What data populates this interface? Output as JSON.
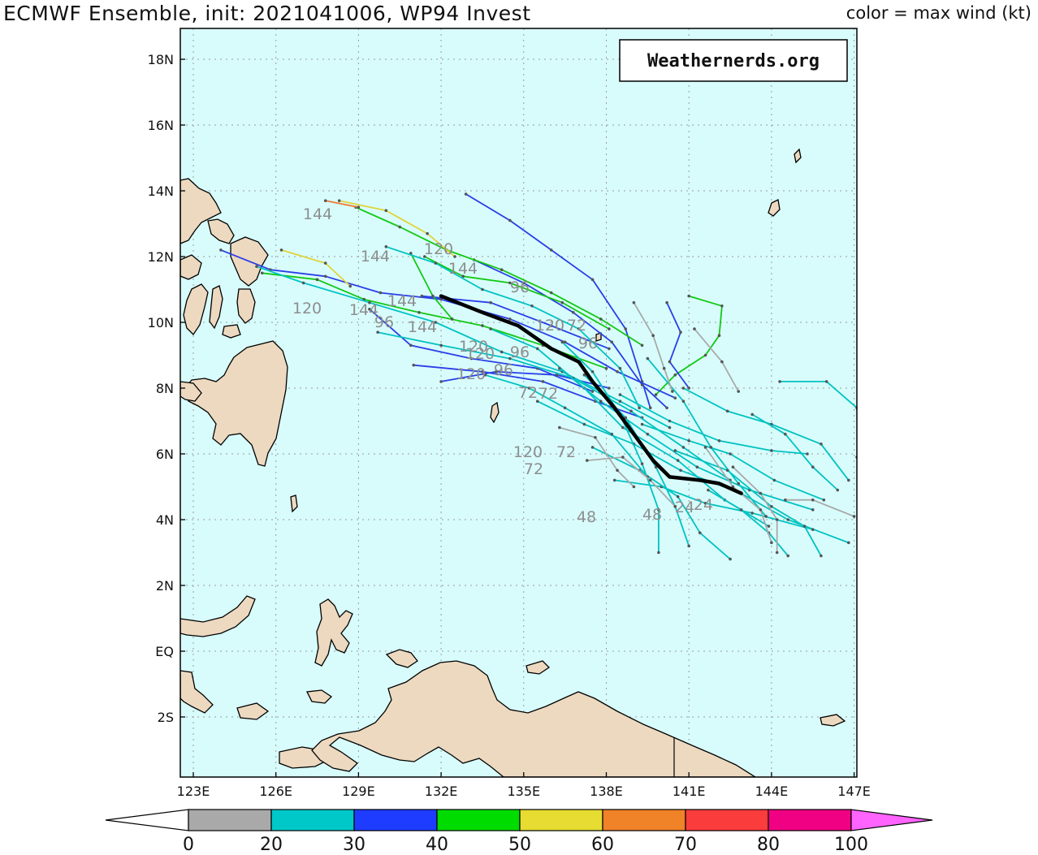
{
  "title": "ECMWF Ensemble, init: 2021041006, WP94 Invest",
  "legend_title": "color = max wind (kt)",
  "watermark": "Weathernerds.org",
  "colors": {
    "ocean": "#d8fcfc",
    "land": "#ecd9c0",
    "grid": "#9a9a9a",
    "mean_track": "#000000"
  },
  "axes": {
    "lon_labels": [
      "123E",
      "126E",
      "129E",
      "132E",
      "135E",
      "138E",
      "141E",
      "144E",
      "147E"
    ],
    "lat_labels": [
      "18N",
      "16N",
      "14N",
      "12N",
      "10N",
      "8N",
      "6N",
      "4N",
      "2N",
      "EQ",
      "2S"
    ]
  },
  "colorbar": {
    "labels": [
      "0",
      "20",
      "30",
      "40",
      "50",
      "60",
      "70",
      "80",
      "100"
    ],
    "colors": [
      "#a9a9a9",
      "#00c8c8",
      "#1e3cff",
      "#00dc00",
      "#e6dc32",
      "#f08228",
      "#fa3c3c",
      "#f00082",
      "#ff64ff"
    ]
  },
  "forecast_hour_labels": [
    {
      "text": "144"
    },
    {
      "text": "120"
    },
    {
      "text": "144"
    },
    {
      "text": "144"
    },
    {
      "text": "120"
    },
    {
      "text": "144"
    },
    {
      "text": "96"
    },
    {
      "text": "144"
    },
    {
      "text": "96"
    },
    {
      "text": "144"
    },
    {
      "text": "120"
    },
    {
      "text": "120"
    },
    {
      "text": "72"
    },
    {
      "text": "96"
    },
    {
      "text": "120"
    },
    {
      "text": "96"
    },
    {
      "text": "72"
    },
    {
      "text": "72"
    },
    {
      "text": "120"
    },
    {
      "text": "72"
    },
    {
      "text": "72"
    },
    {
      "text": "48"
    },
    {
      "text": "48"
    },
    {
      "text": "24"
    },
    {
      "text": "24"
    },
    {
      "text": "120"
    },
    {
      "text": "96"
    }
  ],
  "tracks": [
    {
      "wind": "green",
      "points": [
        [
          141,
          10.8
        ],
        [
          142.2,
          10.5
        ],
        [
          142.1,
          9.6
        ],
        [
          141.6,
          9.0
        ],
        [
          140.5,
          8.4
        ],
        [
          139.8,
          7.8
        ]
      ]
    },
    {
      "wind": "blue",
      "points": [
        [
          132.9,
          13.9
        ],
        [
          134.5,
          13.1
        ],
        [
          136,
          12.2
        ],
        [
          137.5,
          11.3
        ],
        [
          138.7,
          9.8
        ],
        [
          139.3,
          8.2
        ],
        [
          139.6,
          7.4
        ]
      ]
    },
    {
      "wind": "blue",
      "points": [
        [
          133.2,
          11.9
        ],
        [
          135,
          11.2
        ],
        [
          136.8,
          10.3
        ],
        [
          138.2,
          9.4
        ],
        [
          139.3,
          8.1
        ],
        [
          140.2,
          7.4
        ]
      ]
    },
    {
      "wind": "blue",
      "points": [
        [
          124,
          12.2
        ],
        [
          125.8,
          11.6
        ],
        [
          127.8,
          11.4
        ],
        [
          129.8,
          10.9
        ],
        [
          132,
          10.7
        ],
        [
          134.5,
          10.1
        ],
        [
          136.5,
          9.4
        ],
        [
          138.4,
          8.5
        ],
        [
          140.5,
          7.7
        ]
      ]
    },
    {
      "wind": "blue",
      "points": [
        [
          131,
          8.7
        ],
        [
          133.5,
          8.5
        ],
        [
          135.7,
          8.2
        ],
        [
          137.6,
          7.6
        ],
        [
          139.3,
          7.1
        ]
      ]
    },
    {
      "wind": "blue",
      "points": [
        [
          129.4,
          10.4
        ],
        [
          130.9,
          9.3
        ],
        [
          133.1,
          8.9
        ],
        [
          135.5,
          8.6
        ],
        [
          137.5,
          7.9
        ]
      ]
    },
    {
      "wind": "blue",
      "points": [
        [
          132,
          8.2
        ],
        [
          134,
          8.5
        ],
        [
          136.2,
          8.4
        ],
        [
          138.1,
          8.0
        ]
      ]
    },
    {
      "wind": "blue",
      "points": [
        [
          140.2,
          10.6
        ],
        [
          140.7,
          9.7
        ],
        [
          140.3,
          8.8
        ],
        [
          141.0,
          8.0
        ]
      ]
    },
    {
      "wind": "blue",
      "points": [
        [
          131.3,
          10.8
        ],
        [
          133.8,
          10.6
        ],
        [
          136,
          9.9
        ],
        [
          138.1,
          9.2
        ]
      ]
    },
    {
      "wind": "green",
      "points": [
        [
          128.9,
          13.5
        ],
        [
          130.5,
          12.9
        ],
        [
          132.2,
          12.2
        ],
        [
          134.2,
          11.6
        ],
        [
          136,
          10.9
        ],
        [
          137.8,
          10.1
        ],
        [
          139.3,
          9.3
        ]
      ]
    },
    {
      "wind": "green",
      "points": [
        [
          125.5,
          11.5
        ],
        [
          127.5,
          11.3
        ],
        [
          129.2,
          10.7
        ],
        [
          131.2,
          10.3
        ],
        [
          133.5,
          9.9
        ],
        [
          135.7,
          9.3
        ],
        [
          138,
          8.6
        ]
      ]
    },
    {
      "wind": "green",
      "points": [
        [
          131.4,
          12.0
        ],
        [
          132.8,
          11.4
        ],
        [
          134.5,
          11.2
        ],
        [
          136.4,
          10.6
        ],
        [
          138.1,
          9.8
        ]
      ]
    },
    {
      "wind": "green",
      "points": [
        [
          130.9,
          12.1
        ],
        [
          131.7,
          10.8
        ],
        [
          132.4,
          10.1
        ]
      ]
    },
    {
      "wind": "yellow",
      "points": [
        [
          128.3,
          13.7
        ],
        [
          130,
          13.4
        ],
        [
          131.5,
          12.7
        ],
        [
          132.5,
          12.0
        ]
      ]
    },
    {
      "wind": "yellow",
      "points": [
        [
          126.2,
          12.2
        ],
        [
          127.8,
          11.8
        ],
        [
          128.7,
          11.1
        ]
      ]
    },
    {
      "wind": "orange",
      "points": [
        [
          127.8,
          13.7
        ],
        [
          129,
          13.5
        ]
      ]
    },
    {
      "wind": "cyan",
      "points": [
        [
          130,
          12.3
        ],
        [
          131.8,
          11.8
        ],
        [
          133.5,
          11.0
        ],
        [
          135.3,
          10.5
        ],
        [
          137,
          9.8
        ],
        [
          138.5,
          8.6
        ],
        [
          139.2,
          7.4
        ]
      ]
    },
    {
      "wind": "cyan",
      "points": [
        [
          125.3,
          11.7
        ],
        [
          127,
          11.2
        ],
        [
          129.4,
          10.6
        ],
        [
          131.8,
          10.0
        ],
        [
          134.2,
          9.1
        ],
        [
          136.4,
          8.5
        ],
        [
          138.5,
          7.6
        ],
        [
          140.3,
          6.8
        ]
      ]
    },
    {
      "wind": "cyan",
      "points": [
        [
          129.7,
          9.7
        ],
        [
          132,
          9.3
        ],
        [
          134.5,
          8.9
        ],
        [
          136.8,
          8.3
        ],
        [
          138.9,
          7.3
        ],
        [
          140.8,
          6.2
        ],
        [
          142.5,
          5.2
        ]
      ]
    },
    {
      "wind": "cyan",
      "points": [
        [
          133.8,
          9.8
        ],
        [
          135.5,
          9.2
        ],
        [
          137.2,
          8.0
        ],
        [
          138.6,
          6.8
        ],
        [
          140.6,
          5.8
        ],
        [
          142.3,
          4.6
        ],
        [
          143.9,
          3.8
        ]
      ]
    },
    {
      "wind": "cyan",
      "points": [
        [
          136.3,
          8.6
        ],
        [
          137.8,
          7.6
        ],
        [
          139.5,
          6.6
        ],
        [
          141.3,
          5.6
        ],
        [
          143.2,
          4.9
        ],
        [
          145.5,
          4.3
        ]
      ]
    },
    {
      "wind": "cyan",
      "points": [
        [
          137.2,
          8.4
        ],
        [
          138.7,
          7.1
        ],
        [
          139.8,
          5.6
        ],
        [
          140.5,
          4.4
        ],
        [
          141,
          3.2
        ]
      ]
    },
    {
      "wind": "cyan",
      "points": [
        [
          135.5,
          7.6
        ],
        [
          137.2,
          6.9
        ],
        [
          139,
          6.3
        ],
        [
          140.7,
          5.5
        ],
        [
          142.9,
          4.8
        ],
        [
          144.6,
          4.0
        ],
        [
          146.8,
          3.3
        ]
      ]
    },
    {
      "wind": "cyan",
      "points": [
        [
          138.5,
          7.8
        ],
        [
          140.3,
          7.0
        ],
        [
          142.1,
          6.4
        ],
        [
          144,
          6.1
        ],
        [
          145.3,
          6.0
        ]
      ]
    },
    {
      "wind": "cyan",
      "points": [
        [
          140.8,
          8.0
        ],
        [
          142.4,
          7.3
        ],
        [
          144,
          6.9
        ],
        [
          145.8,
          6.3
        ],
        [
          146.8,
          5.2
        ]
      ]
    },
    {
      "wind": "cyan",
      "points": [
        [
          144.3,
          8.2
        ],
        [
          146,
          8.2
        ],
        [
          147.1,
          7.4
        ],
        [
          147.2,
          6.3
        ],
        [
          147.1,
          5.9
        ]
      ]
    },
    {
      "wind": "cyan",
      "points": [
        [
          139.3,
          6.9
        ],
        [
          141,
          6.4
        ],
        [
          142.5,
          6.0
        ],
        [
          144.1,
          5.2
        ],
        [
          145.9,
          4.6
        ]
      ]
    },
    {
      "wind": "cyan",
      "points": [
        [
          138.3,
          5.2
        ],
        [
          140,
          5.0
        ],
        [
          141.6,
          4.5
        ],
        [
          143.3,
          4.2
        ],
        [
          145.5,
          3.7
        ]
      ]
    },
    {
      "wind": "cyan",
      "points": [
        [
          137.5,
          6.2
        ],
        [
          139.2,
          5.5
        ],
        [
          140.6,
          4.7
        ],
        [
          141.4,
          3.6
        ],
        [
          142.5,
          2.8
        ]
      ]
    },
    {
      "wind": "cyan",
      "points": [
        [
          139.5,
          8.9
        ],
        [
          140.8,
          7.6
        ],
        [
          141.8,
          6.2
        ],
        [
          142.8,
          5.1
        ],
        [
          143.8,
          4.1
        ]
      ]
    },
    {
      "wind": "cyan",
      "points": [
        [
          143.3,
          7.2
        ],
        [
          144.5,
          6.6
        ],
        [
          145.5,
          5.6
        ],
        [
          146.4,
          4.9
        ]
      ]
    },
    {
      "wind": "cyan",
      "points": [
        [
          136.4,
          9.4
        ],
        [
          137.5,
          8.5
        ],
        [
          138.5,
          7.2
        ],
        [
          139.3,
          5.7
        ],
        [
          139.9,
          4.3
        ],
        [
          139.9,
          3.0
        ]
      ]
    },
    {
      "wind": "cyan",
      "points": [
        [
          133.6,
          8.4
        ],
        [
          135.2,
          8.0
        ],
        [
          136.5,
          7.4
        ],
        [
          138.2,
          6.6
        ],
        [
          139.5,
          5.3
        ]
      ]
    },
    {
      "wind": "cyan",
      "points": [
        [
          140.5,
          6.1
        ],
        [
          142.4,
          5.5
        ],
        [
          144,
          4.4
        ],
        [
          145.2,
          3.8
        ],
        [
          145.8,
          2.9
        ]
      ]
    },
    {
      "wind": "cyan",
      "points": [
        [
          141.7,
          4.9
        ],
        [
          142.9,
          4.3
        ],
        [
          143.9,
          3.6
        ],
        [
          144.6,
          2.9
        ]
      ]
    },
    {
      "wind": "gray",
      "points": [
        [
          139,
          10.6
        ],
        [
          139.7,
          9.6
        ],
        [
          140.1,
          8.6
        ],
        [
          140.4,
          7.9
        ]
      ]
    },
    {
      "wind": "gray",
      "points": [
        [
          141.2,
          9.8
        ],
        [
          142.2,
          8.8
        ],
        [
          142.8,
          7.9
        ]
      ]
    },
    {
      "wind": "gray",
      "points": [
        [
          142.6,
          5.6
        ],
        [
          143.6,
          4.8
        ],
        [
          144.2,
          4.0
        ],
        [
          144.2,
          3.0
        ]
      ]
    },
    {
      "wind": "gray",
      "points": [
        [
          137.3,
          5.8
        ],
        [
          138.6,
          5.9
        ],
        [
          139.6,
          5.2
        ],
        [
          140.5,
          4.4
        ]
      ]
    },
    {
      "wind": "gray",
      "points": [
        [
          144.5,
          4.6
        ],
        [
          145.5,
          4.6
        ],
        [
          147,
          4.1
        ]
      ]
    },
    {
      "wind": "gray",
      "points": [
        [
          141.6,
          6.2
        ],
        [
          142.6,
          5.0
        ],
        [
          143.6,
          4.3
        ],
        [
          144,
          3.3
        ]
      ]
    },
    {
      "wind": "gray",
      "points": [
        [
          136.3,
          6.8
        ],
        [
          137.6,
          6.5
        ],
        [
          138.4,
          5.5
        ],
        [
          139.0,
          5.0
        ]
      ]
    }
  ],
  "mean_track": [
    [
      132,
      10.8
    ],
    [
      133.5,
      10.3
    ],
    [
      134.8,
      9.9
    ],
    [
      136.0,
      9.2
    ],
    [
      137.0,
      8.8
    ],
    [
      137.5,
      8.2
    ],
    [
      138.3,
      7.4
    ],
    [
      139.0,
      6.6
    ],
    [
      139.7,
      5.8
    ],
    [
      140.3,
      5.3
    ],
    [
      141.4,
      5.2
    ],
    [
      142.1,
      5.1
    ],
    [
      142.9,
      4.8
    ]
  ]
}
